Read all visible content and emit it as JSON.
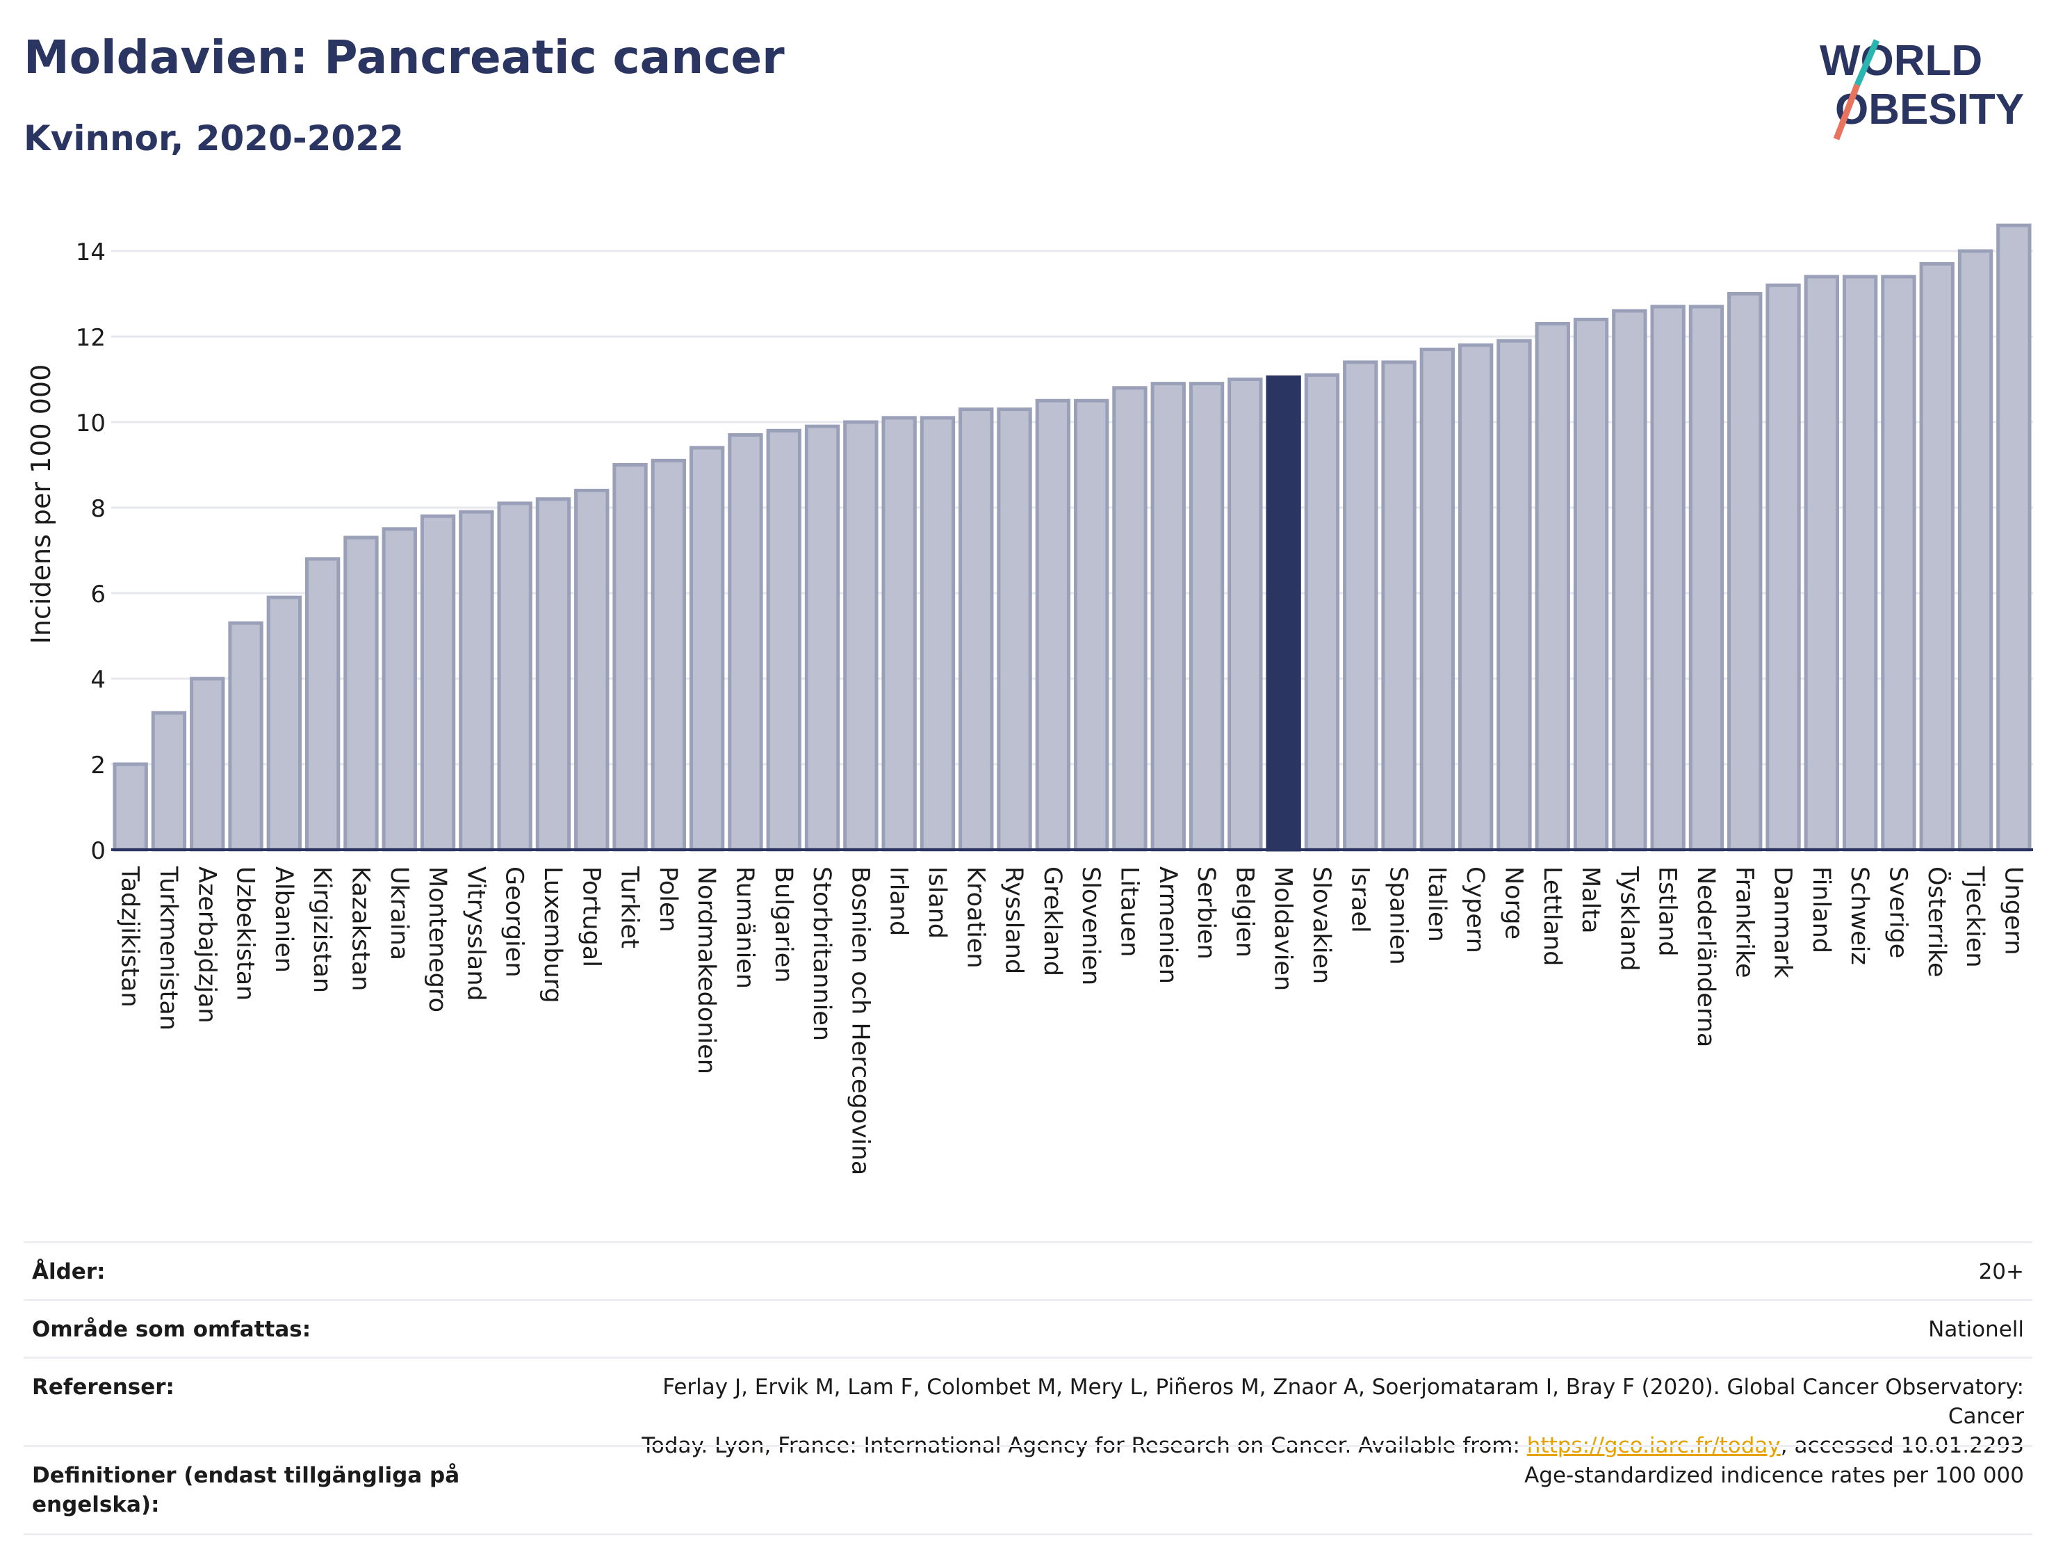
{
  "header": {
    "title": "Moldavien: Pancreatic cancer",
    "subtitle": "Kvinnor, 2020-2022"
  },
  "logo": {
    "line1": "WORLD",
    "line2": "OBESITY"
  },
  "colors": {
    "bar": "#bcc0d0",
    "bar_stroke": "#9aa0b8",
    "highlight": "#2a3661",
    "grid": "#e6e8ee"
  },
  "chart_data": {
    "type": "bar",
    "ylabel": "Incidens per 100 000",
    "ylim": [
      0,
      15
    ],
    "yticks": [
      0,
      2,
      4,
      6,
      8,
      10,
      12,
      14
    ],
    "highlight": "Moldavien",
    "grid": true,
    "categories": [
      "Tadzjikistan",
      "Turkmenistan",
      "Azerbajdzjan",
      "Uzbekistan",
      "Albanien",
      "Kirgizistan",
      "Kazakstan",
      "Ukraina",
      "Montenegro",
      "Vitryssland",
      "Georgien",
      "Luxemburg",
      "Portugal",
      "Turkiet",
      "Polen",
      "Nordmakedonien",
      "Rumänien",
      "Bulgarien",
      "Storbritannien",
      "Bosnien och Hercegovina",
      "Irland",
      "Island",
      "Kroatien",
      "Ryssland",
      "Grekland",
      "Slovenien",
      "Litauen",
      "Armenien",
      "Serbien",
      "Belgien",
      "Moldavien",
      "Slovakien",
      "Israel",
      "Spanien",
      "Italien",
      "Cypern",
      "Norge",
      "Lettland",
      "Malta",
      "Tyskland",
      "Estland",
      "Nederländerna",
      "Frankrike",
      "Danmark",
      "Finland",
      "Schweiz",
      "Sverige",
      "Österrike",
      "Tjeckien",
      "Ungern"
    ],
    "values": [
      2.0,
      3.2,
      4.0,
      5.3,
      5.9,
      6.8,
      7.3,
      7.5,
      7.8,
      7.9,
      8.1,
      8.2,
      8.4,
      9.0,
      9.1,
      9.4,
      9.7,
      9.8,
      9.9,
      10.0,
      10.1,
      10.1,
      10.3,
      10.3,
      10.5,
      10.5,
      10.8,
      10.9,
      10.9,
      11.0,
      11.05,
      11.1,
      11.4,
      11.4,
      11.7,
      11.8,
      11.9,
      12.3,
      12.4,
      12.6,
      12.7,
      12.7,
      13.0,
      13.2,
      13.4,
      13.4,
      13.4,
      13.7,
      14.0,
      14.6
    ]
  },
  "meta": {
    "age_label": "Ålder:",
    "age_value": "20+",
    "area_label": "Område som omfattas:",
    "area_value": "Nationell",
    "ref_label": "Referenser:",
    "ref_line1": "Ferlay J, Ervik M, Lam F, Colombet M, Mery L, Piñeros M, Znaor A, Soerjomataram I, Bray F (2020). Global Cancer Observatory: Cancer",
    "ref_line2_pre": "Today. Lyon, France: International Agency for Research on Cancer. Available from: ",
    "ref_link": "https://gco.iarc.fr/today",
    "ref_line2_post": ", accessed 10.01.2293",
    "def_label": "Definitioner (endast tillgängliga på engelska):",
    "def_value": "Age-standardized indicence rates per 100 000"
  }
}
